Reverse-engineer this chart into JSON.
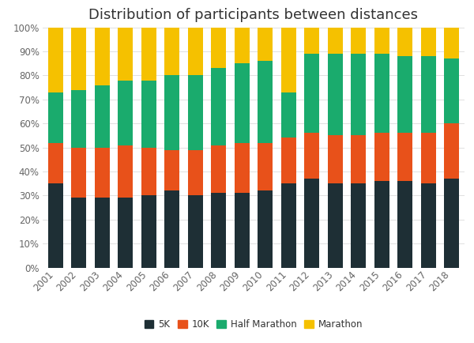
{
  "years": [
    2001,
    2002,
    2003,
    2004,
    2005,
    2006,
    2007,
    2008,
    2009,
    2010,
    2011,
    2012,
    2013,
    2014,
    2015,
    2016,
    2017,
    2018
  ],
  "5K": [
    35,
    29,
    29,
    29,
    30,
    32,
    30,
    31,
    31,
    32,
    35,
    37,
    35,
    35,
    36,
    36,
    35,
    37
  ],
  "10K": [
    17,
    21,
    21,
    22,
    20,
    17,
    19,
    20,
    21,
    20,
    19,
    19,
    20,
    20,
    20,
    20,
    21,
    23
  ],
  "Half Marathon": [
    21,
    24,
    26,
    27,
    28,
    31,
    31,
    32,
    33,
    34,
    19,
    33,
    34,
    34,
    33,
    32,
    32,
    27
  ],
  "Marathon": [
    27,
    26,
    24,
    22,
    22,
    20,
    20,
    17,
    15,
    14,
    27,
    11,
    11,
    11,
    11,
    12,
    12,
    13
  ],
  "colors": {
    "5K": "#1e2f35",
    "10K": "#e8511a",
    "Half Marathon": "#1aab6d",
    "Marathon": "#f5c100"
  },
  "title": "Distribution of participants between distances",
  "title_fontsize": 13,
  "legend_labels": [
    "5K",
    "10K",
    "Half Marathon",
    "Marathon"
  ],
  "background_color": "#ffffff",
  "bar_width": 0.65
}
